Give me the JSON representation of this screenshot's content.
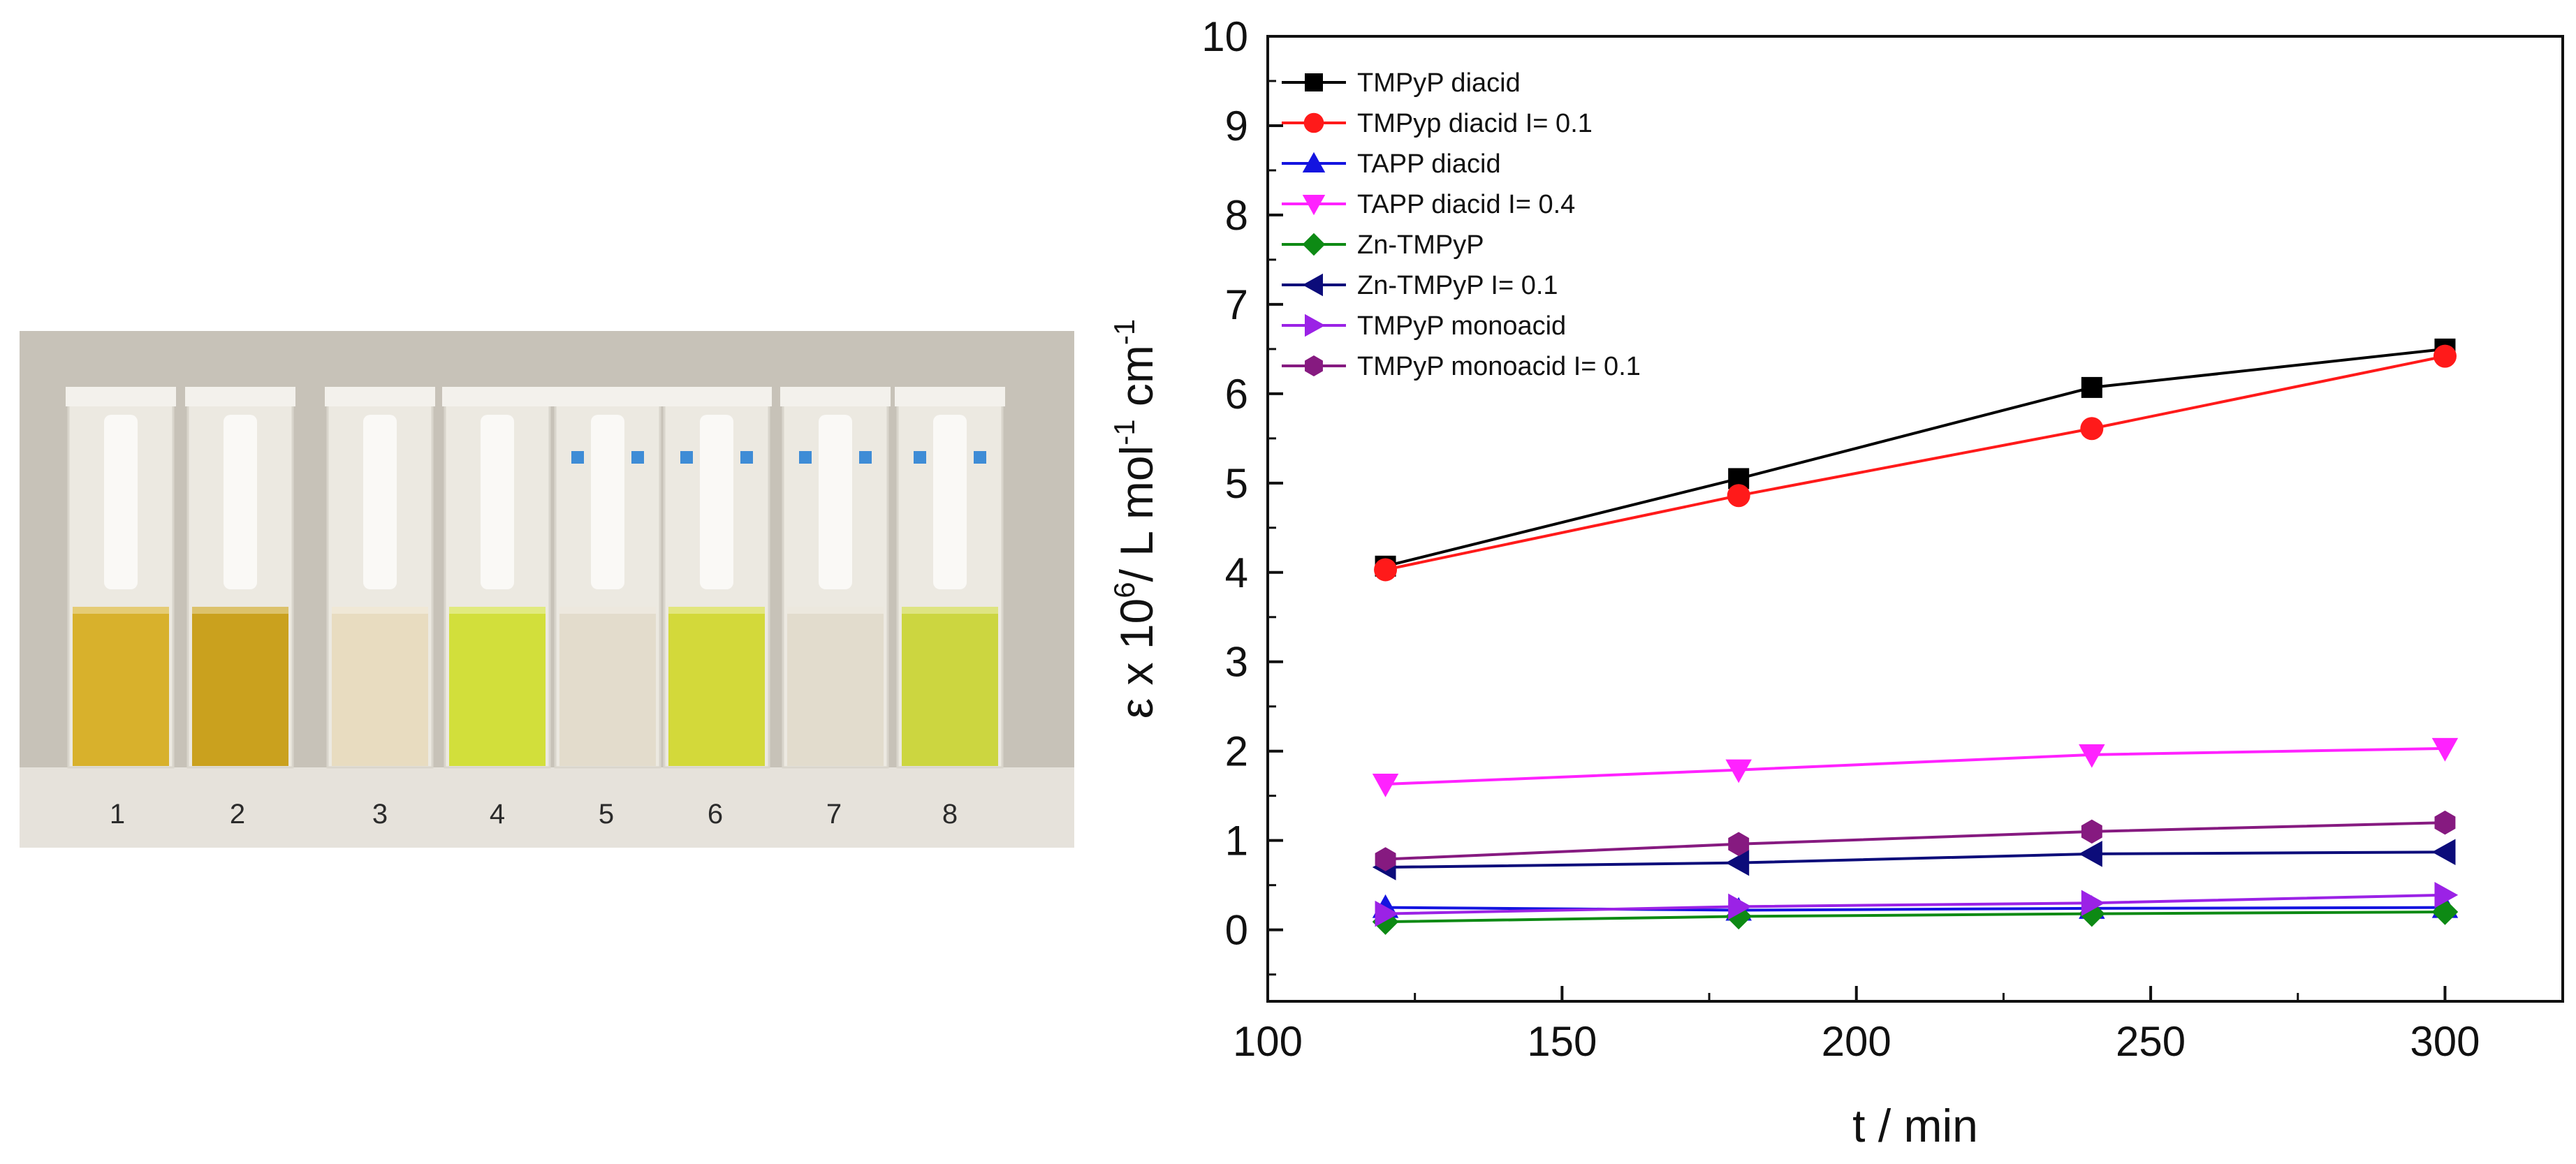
{
  "photo": {
    "cuvette_labels": [
      "1",
      "2",
      "3",
      "4",
      "5",
      "6",
      "7",
      "8"
    ],
    "liquid_colors": [
      "#d8b12c",
      "#caa11e",
      "#e8dcc0",
      "#d2df3b",
      "#e3dccc",
      "#d3d93a",
      "#e2dccd",
      "#ccd640"
    ],
    "has_marks": [
      false,
      false,
      false,
      false,
      true,
      true,
      true,
      true
    ],
    "background": "#c7c2b8",
    "mark_color": "#3e8cd6"
  },
  "chart_data": {
    "type": "line",
    "title": "",
    "xlabel": "t / min",
    "ylabel": {
      "prefix": "ε x 10",
      "sup1": "6",
      "mid": "/ L mol",
      "sup2": "-1",
      "end": " cm",
      "sup3": "-1"
    },
    "xlim": [
      100,
      320
    ],
    "ylim": [
      -0.8,
      10
    ],
    "xticks": [
      100,
      150,
      200,
      250,
      300
    ],
    "yticks": [
      0,
      1,
      2,
      3,
      4,
      5,
      6,
      7,
      8,
      9,
      10
    ],
    "grid": false,
    "legend_position": "top-left",
    "x": [
      120,
      180,
      240,
      300
    ],
    "series": [
      {
        "name": "TMPyP diacid",
        "color": "#000000",
        "marker": "square",
        "values": [
          4.07,
          5.05,
          6.07,
          6.5
        ]
      },
      {
        "name": "TMPyp diacid I= 0.1",
        "color": "#ff1a1a",
        "marker": "circle",
        "values": [
          4.03,
          4.86,
          5.61,
          6.42
        ]
      },
      {
        "name": "TAPP diacid",
        "color": "#1414e0",
        "marker": "triangle-up",
        "values": [
          0.25,
          0.22,
          0.24,
          0.25
        ]
      },
      {
        "name": "TAPP diacid I= 0.4",
        "color": "#ff22ff",
        "marker": "triangle-down",
        "values": [
          1.63,
          1.79,
          1.96,
          2.03
        ]
      },
      {
        "name": "Zn-TMPyP",
        "color": "#0d8a14",
        "marker": "diamond",
        "values": [
          0.09,
          0.15,
          0.18,
          0.2
        ]
      },
      {
        "name": "Zn-TMPyP I= 0.1",
        "color": "#0c0c7a",
        "marker": "triangle-left",
        "values": [
          0.7,
          0.75,
          0.85,
          0.87
        ]
      },
      {
        "name": "TMPyP monoacid",
        "color": "#9b22e6",
        "marker": "triangle-right",
        "values": [
          0.18,
          0.26,
          0.3,
          0.39
        ]
      },
      {
        "name": "TMPyP monoacid I= 0.1",
        "color": "#861a80",
        "marker": "hexagon",
        "values": [
          0.79,
          0.96,
          1.1,
          1.2
        ]
      }
    ]
  }
}
